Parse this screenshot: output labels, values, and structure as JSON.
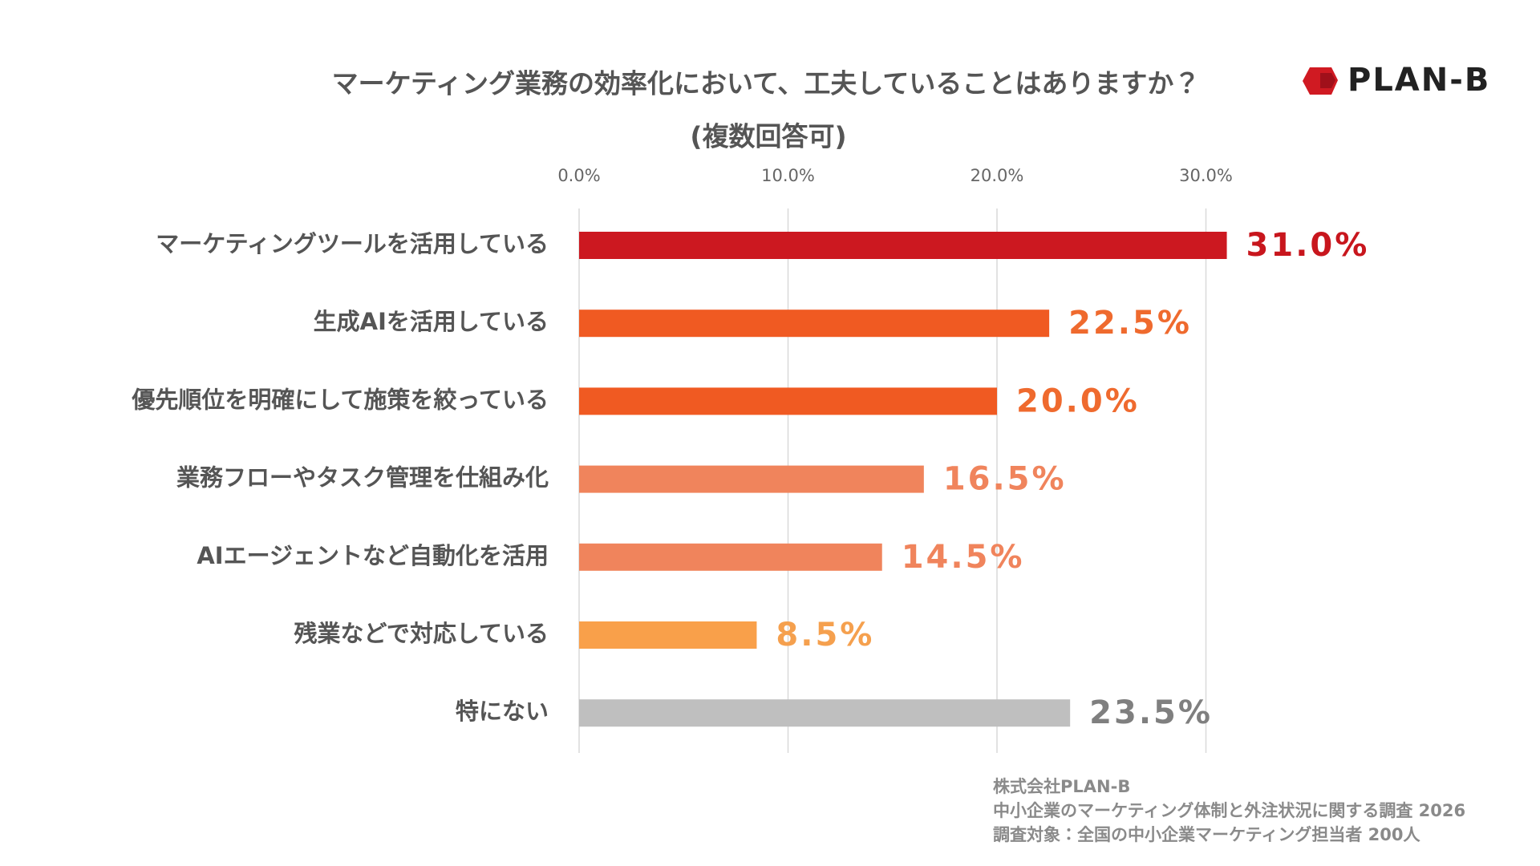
{
  "chart_data": {
    "type": "bar",
    "orientation": "horizontal",
    "title": "マーケティング業務の効率化において、工夫していることはありますか？",
    "subtitle": "(複数回答可)",
    "categories": [
      "マーケティングツールを活用している",
      "生成AIを活用している",
      "優先順位を明確にして施策を絞っている",
      "業務フローやタスク管理を仕組み化",
      "AIエージェントなど自動化を活用",
      "残業などで対応している",
      "特にない"
    ],
    "values": [
      31.0,
      22.5,
      20.0,
      16.5,
      14.5,
      8.5,
      23.5
    ],
    "value_labels": [
      "31.0%",
      "22.5%",
      "20.0%",
      "16.5%",
      "14.5%",
      "8.5%",
      "23.5%"
    ],
    "colors": [
      "#cc1820",
      "#f05a22",
      "#f05a22",
      "#f0845c",
      "#f0845c",
      "#f9a04a",
      "#bfbfbf"
    ],
    "label_colors": [
      "#c8161d",
      "#ef6a2e",
      "#ef6a2e",
      "#f0845c",
      "#f0845c",
      "#f5a04e",
      "#7f7f7f"
    ],
    "xlim": [
      0,
      35
    ],
    "xticks": [
      {
        "value": 0,
        "label": "0.0%"
      },
      {
        "value": 10,
        "label": "10.0%"
      },
      {
        "value": 20,
        "label": "20.0%"
      },
      {
        "value": 30,
        "label": "30.0%"
      }
    ],
    "grid": true,
    "logo_text": "PLAN-B",
    "source_notes": [
      "株式会社PLAN-B",
      "中小企業のマーケティング体制と外注状況に関する調査 2026",
      "調査対象：全国の中小企業マーケティング担当者 200人"
    ]
  }
}
